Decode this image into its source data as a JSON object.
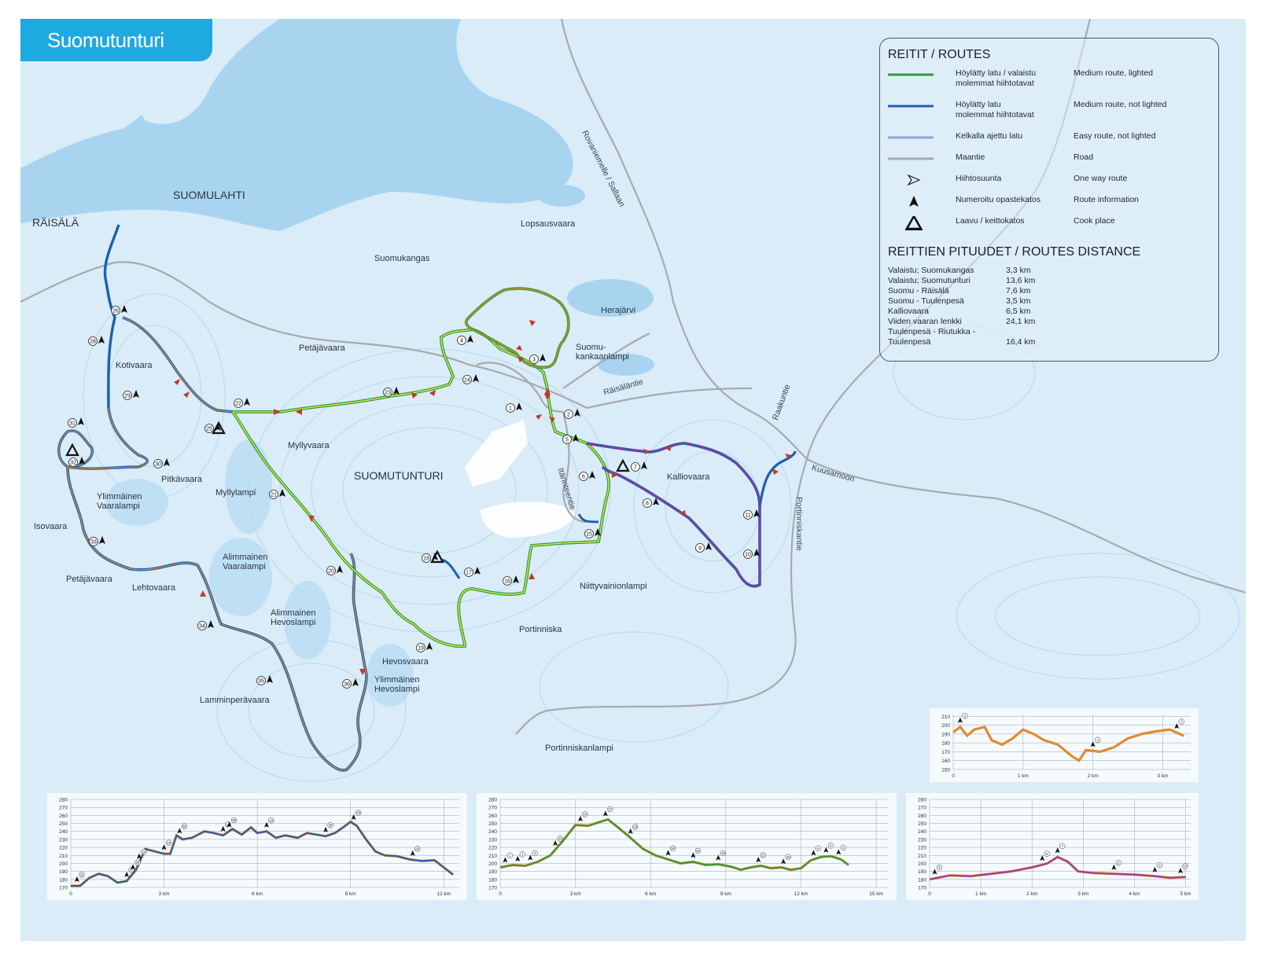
{
  "map_title": "Suomutunturi",
  "place_names": [
    "SUOMULAHTI",
    "RÄISÄLÄ",
    "Lopsausvaara",
    "Suomukangas",
    "Herajärvi",
    "Petäjävaara",
    "Suomu-",
    "kankaanlampi",
    "Kotivaara",
    "Myllyvaara",
    "SUOMUTUNTURI",
    "Kalliovaara",
    "Pitkävaara",
    "Myllylampi",
    "Ylimmäinen",
    "Vaaralampi",
    "Isovaara",
    "Petäjävaara",
    "Lehtovaara",
    "Alimmainen",
    "Vaaralampi",
    "Alimmainen",
    "Hevoslampi",
    "Niittyvainionlampi",
    "Portinniska",
    "Hevosvaara",
    "Ylimmäinen",
    "Hevoslampi",
    "Lamminperävaara",
    "Portinniskanlampi"
  ],
  "road_names": [
    "Rovaniemelle / Sallaan",
    "Räisäläntie",
    "Raakuntie",
    "Kuusamoon",
    "Itärinteentie",
    "Portinniskantie"
  ],
  "legend": {
    "title": "REITIT / ROUTES",
    "rows": [
      {
        "fi": "Höylätty latu / valaistu\nmolemmat hiihtotavat",
        "en": "Medium route, lighted",
        "color": "#2e9a3a",
        "symbol": "green-line"
      },
      {
        "fi": "Höylätty latu\nmolemmat hiihtotavat",
        "en": "Medium route, not lighted",
        "color": "#1f5fae",
        "symbol": "blue-line"
      },
      {
        "fi": "Kelkalla ajettu latu",
        "en": "Easy route, not lighted",
        "color": "#8aa8d6",
        "symbol": "light-blue-line"
      },
      {
        "fi": "Maantie",
        "en": "Road",
        "color": "#a7aaae",
        "symbol": "grey-line"
      },
      {
        "fi": "Hiihtosuunta",
        "en": "One way route",
        "symbol": "direction-arrow-icon"
      },
      {
        "fi": "Numeroitu opastekatos",
        "en": "Route information",
        "symbol": "info-shelter-icon"
      },
      {
        "fi": "Laavu / keittokatos",
        "en": "Cook place",
        "symbol": "cook-place-icon"
      }
    ]
  },
  "distances": {
    "title": "REITTIEN PITUUDET / ROUTES DISTANCE",
    "rows": [
      {
        "name": "Valaistu; Suomukangas",
        "km": "3,3 km"
      },
      {
        "name": "Valaistu; Suomutunturi",
        "km": "13,6 km"
      },
      {
        "name": "Suomu - Räisälä",
        "km": "7,6 km"
      },
      {
        "name": "Suomu - Tuulenpesä",
        "km": "3,5 km"
      },
      {
        "name": "Kalliovaara",
        "km": "6,5 km"
      },
      {
        "name": "Viiden vaaran lenkki",
        "km": "24,1 km"
      },
      {
        "name": "Tuulenpesä - Riutukka -",
        "km": ""
      },
      {
        "name": "Tuulenpesä",
        "km": "16,4 km"
      }
    ]
  },
  "waypoints": [
    "1",
    "2",
    "3",
    "4",
    "5",
    "6",
    "7",
    "8",
    "9",
    "10",
    "11",
    "15",
    "16",
    "17",
    "18",
    "19",
    "20",
    "21",
    "22",
    "23",
    "24",
    "25",
    "26",
    "28",
    "29",
    "30",
    "31",
    "32",
    "33",
    "34",
    "35",
    "36"
  ],
  "colors": {
    "map_bg": "#d9ecf8",
    "lake": "#a9d4f0",
    "green": "#2e9a3a",
    "yellow": "#e8ec4a",
    "blue": "#1f5fae",
    "orange": "#e08a34",
    "purple": "#b02a9a",
    "road": "#a7aaae",
    "title_tab": "#1ea9e1"
  },
  "chart_data": [
    {
      "type": "line",
      "title": "",
      "y_ticks": [
        170,
        180,
        190,
        200,
        210,
        220,
        230,
        240,
        250,
        260,
        270,
        280
      ],
      "ylim": [
        170,
        280
      ],
      "xlim": [
        0,
        12.5
      ],
      "x_ticks": [
        "0",
        "3 km",
        "6 km",
        "9 km",
        "12 km"
      ],
      "series": [
        {
          "color": "#1f5fae",
          "points": [
            [
              0,
              172
            ],
            [
              0.3,
              172
            ],
            [
              0.6,
              182
            ],
            [
              0.9,
              187
            ],
            [
              1.2,
              184
            ],
            [
              1.5,
              176
            ],
            [
              1.8,
              178
            ],
            [
              2.1,
              192
            ],
            [
              2.4,
              218
            ],
            [
              2.7,
              215
            ],
            [
              3,
              212
            ],
            [
              3.2,
              212
            ],
            [
              3.4,
              235
            ],
            [
              3.6,
              230
            ],
            [
              3.9,
              232
            ],
            [
              4.3,
              240
            ],
            [
              4.6,
              238
            ],
            [
              4.9,
              235
            ],
            [
              5.2,
              243
            ],
            [
              5.5,
              236
            ],
            [
              5.8,
              245
            ],
            [
              6.0,
              238
            ],
            [
              6.3,
              240
            ],
            [
              6.6,
              232
            ],
            [
              6.9,
              235
            ],
            [
              7.3,
              232
            ],
            [
              7.6,
              238
            ],
            [
              7.9,
              236
            ],
            [
              8.2,
              234
            ],
            [
              8.5,
              238
            ],
            [
              8.8,
              246
            ],
            [
              9.0,
              252
            ],
            [
              9.2,
              247
            ],
            [
              9.5,
              230
            ],
            [
              9.8,
              215
            ],
            [
              10.1,
              210
            ],
            [
              10.5,
              209
            ],
            [
              10.9,
              205
            ],
            [
              11.3,
              203
            ],
            [
              11.7,
              204
            ],
            [
              12.0,
              195
            ],
            [
              12.3,
              186
            ]
          ]
        }
      ],
      "markers": [
        [
          0.2,
          "22"
        ],
        [
          1.8,
          "21"
        ],
        [
          2.0,
          "20"
        ],
        [
          2.2,
          "24"
        ],
        [
          3.0,
          "23"
        ],
        [
          3.5,
          "20"
        ],
        [
          4.9,
          "19"
        ],
        [
          5.1,
          "35"
        ],
        [
          6.3,
          "24"
        ],
        [
          8.2,
          "30"
        ],
        [
          9.1,
          "29"
        ],
        [
          11.0,
          "25"
        ]
      ]
    },
    {
      "type": "line",
      "title": "",
      "y_ticks": [
        170,
        180,
        190,
        200,
        210,
        220,
        230,
        240,
        250,
        260,
        270,
        280
      ],
      "ylim": [
        170,
        280
      ],
      "xlim": [
        0,
        15.5
      ],
      "x_ticks": [
        "0",
        "3 km",
        "6 km",
        "9 km",
        "12 km",
        "15 km"
      ],
      "series": [
        {
          "color": "#2e9a3a",
          "points": [
            [
              0,
              195
            ],
            [
              0.5,
              198
            ],
            [
              1.0,
              197
            ],
            [
              1.5,
              202
            ],
            [
              2.0,
              210
            ],
            [
              2.5,
              228
            ],
            [
              3.0,
              248
            ],
            [
              3.5,
              247
            ],
            [
              4.0,
              252
            ],
            [
              4.3,
              255
            ],
            [
              4.7,
              245
            ],
            [
              5.2,
              232
            ],
            [
              5.7,
              218
            ],
            [
              6.2,
              210
            ],
            [
              6.7,
              205
            ],
            [
              7.2,
              200
            ],
            [
              7.7,
              202
            ],
            [
              8.2,
              198
            ],
            [
              8.7,
              199
            ],
            [
              9.2,
              196
            ],
            [
              9.6,
              192
            ],
            [
              10.0,
              195
            ],
            [
              10.4,
              197
            ],
            [
              10.8,
              194
            ],
            [
              11.2,
              195
            ],
            [
              11.6,
              192
            ],
            [
              12.0,
              194
            ],
            [
              12.4,
              204
            ],
            [
              12.8,
              208
            ],
            [
              13.2,
              209
            ],
            [
              13.6,
              205
            ],
            [
              13.9,
              198
            ]
          ]
        }
      ],
      "markers": [
        [
          0.2,
          "1"
        ],
        [
          0.7,
          "2"
        ],
        [
          1.2,
          "3"
        ],
        [
          2.2,
          "24"
        ],
        [
          3.2,
          "16"
        ],
        [
          4.2,
          "17"
        ],
        [
          5.2,
          "18"
        ],
        [
          6.7,
          "20"
        ],
        [
          7.7,
          "21"
        ],
        [
          8.7,
          "19"
        ],
        [
          10.3,
          "22"
        ],
        [
          11.3,
          "15"
        ],
        [
          12.5,
          "6"
        ],
        [
          13.0,
          "4"
        ],
        [
          13.5,
          "5"
        ]
      ]
    },
    {
      "type": "line",
      "title": "",
      "y_ticks": [
        170,
        180,
        190,
        200,
        210,
        220,
        230,
        240,
        250,
        260,
        270,
        280
      ],
      "ylim": [
        170,
        280
      ],
      "xlim": [
        0,
        5.1
      ],
      "x_ticks": [
        "0",
        "1 km",
        "2 km",
        "3 km",
        "4 km",
        "5 km"
      ],
      "series": [
        {
          "color": "#9a3aa8",
          "points": [
            [
              0,
              180
            ],
            [
              0.4,
              185
            ],
            [
              0.8,
              184
            ],
            [
              1.2,
              187
            ],
            [
              1.6,
              190
            ],
            [
              2.0,
              195
            ],
            [
              2.3,
              200
            ],
            [
              2.5,
              208
            ],
            [
              2.7,
              202
            ],
            [
              2.9,
              190
            ],
            [
              3.2,
              188
            ],
            [
              3.6,
              187
            ],
            [
              4.0,
              186
            ],
            [
              4.4,
              184
            ],
            [
              4.7,
              182
            ],
            [
              5.0,
              183
            ]
          ]
        }
      ],
      "markers": [
        [
          0.1,
          "5"
        ],
        [
          2.2,
          "6"
        ],
        [
          2.5,
          "7"
        ],
        [
          3.6,
          "8"
        ],
        [
          4.4,
          "9"
        ],
        [
          4.9,
          "10"
        ]
      ]
    },
    {
      "type": "line",
      "title": "",
      "y_ticks": [
        150,
        160,
        170,
        180,
        190,
        200,
        210
      ],
      "ylim": [
        150,
        212
      ],
      "xlim": [
        0,
        3.4
      ],
      "x_ticks": [
        "0",
        "1 km",
        "2 km",
        "3 km"
      ],
      "series": [
        {
          "color": "#e08a34",
          "points": [
            [
              0,
              192
            ],
            [
              0.1,
              198
            ],
            [
              0.2,
              188
            ],
            [
              0.3,
              195
            ],
            [
              0.45,
              198
            ],
            [
              0.55,
              183
            ],
            [
              0.7,
              178
            ],
            [
              0.85,
              185
            ],
            [
              1.0,
              195
            ],
            [
              1.15,
              190
            ],
            [
              1.3,
              183
            ],
            [
              1.5,
              178
            ],
            [
              1.7,
              165
            ],
            [
              1.8,
              160
            ],
            [
              1.9,
              172
            ],
            [
              2.1,
              170
            ],
            [
              2.3,
              175
            ],
            [
              2.5,
              185
            ],
            [
              2.7,
              190
            ],
            [
              2.9,
              193
            ],
            [
              3.1,
              195
            ],
            [
              3.3,
              188
            ]
          ]
        }
      ],
      "markers": [
        [
          0.1,
          "3"
        ],
        [
          2.0,
          "4"
        ],
        [
          3.2,
          "3"
        ]
      ]
    }
  ]
}
